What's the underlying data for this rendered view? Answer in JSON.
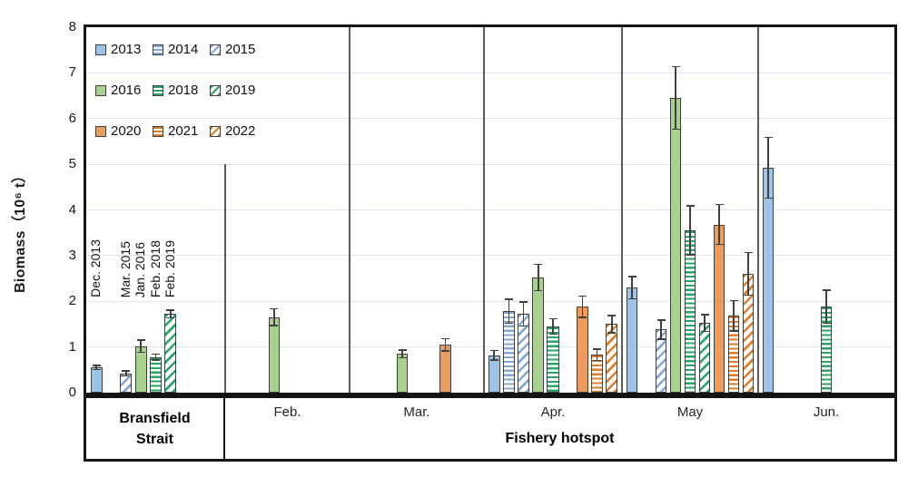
{
  "x_axis": {
    "left_label_line1": "Bransfield",
    "left_label_line2": "Strait",
    "bottom_label": "Fishery hotspot"
  },
  "chart_data": {
    "type": "bar",
    "title": "",
    "xlabel": "Fishery hotspot",
    "ylabel": "Biomass（10⁶ t）",
    "ylim": [
      0,
      8
    ],
    "y_ticks": [
      0,
      1,
      2,
      3,
      4,
      5,
      6,
      7,
      8
    ],
    "grid": "horizontal",
    "legend_position": "top-left-inside",
    "error_bars": true,
    "series_legend": [
      {
        "name": "2013",
        "palette": "blue",
        "fill": "solid"
      },
      {
        "name": "2014",
        "palette": "blue",
        "fill": "hstripe"
      },
      {
        "name": "2015",
        "palette": "blue",
        "fill": "dstripe"
      },
      {
        "name": "2016",
        "palette": "green",
        "fill": "solid"
      },
      {
        "name": "2018",
        "palette": "green",
        "fill": "hstripe"
      },
      {
        "name": "2019",
        "palette": "green",
        "fill": "dstripe"
      },
      {
        "name": "2020",
        "palette": "orange",
        "fill": "solid"
      },
      {
        "name": "2021",
        "palette": "orange",
        "fill": "hstripe"
      },
      {
        "name": "2022",
        "palette": "orange",
        "fill": "dstripe"
      }
    ],
    "sections": [
      {
        "label": "Bransfield Strait",
        "bars": [
          {
            "series": "2013",
            "value": 0.55,
            "error": 0.06,
            "annotation": "Dec. 2013"
          },
          {
            "series": "2015",
            "value": 0.42,
            "error": 0.07,
            "annotation": "Mar. 2015"
          },
          {
            "series": "2016",
            "value": 1.02,
            "error": 0.15,
            "annotation": "Jan. 2016"
          },
          {
            "series": "2018",
            "value": 0.78,
            "error": 0.08,
            "annotation": "Feb. 2018"
          },
          {
            "series": "2019",
            "value": 1.72,
            "error": 0.1,
            "annotation": "Feb. 2019"
          }
        ]
      },
      {
        "label": "Feb.",
        "bars": [
          {
            "series": "2016",
            "value": 1.65,
            "error": 0.2
          }
        ]
      },
      {
        "label": "Mar.",
        "bars": [
          {
            "series": "2016",
            "value": 0.85,
            "error": 0.1
          },
          {
            "series": "2020",
            "value": 1.05,
            "error": 0.15
          }
        ]
      },
      {
        "label": "Apr.",
        "bars": [
          {
            "series": "2013",
            "value": 0.82,
            "error": 0.12
          },
          {
            "series": "2014",
            "value": 1.78,
            "error": 0.28
          },
          {
            "series": "2015",
            "value": 1.72,
            "error": 0.28
          },
          {
            "series": "2016",
            "value": 2.52,
            "error": 0.3
          },
          {
            "series": "2018",
            "value": 1.45,
            "error": 0.18
          },
          {
            "series": "2020",
            "value": 1.88,
            "error": 0.25
          },
          {
            "series": "2021",
            "value": 0.83,
            "error": 0.14
          },
          {
            "series": "2022",
            "value": 1.5,
            "error": 0.2
          }
        ]
      },
      {
        "label": "May",
        "bars": [
          {
            "series": "2013",
            "value": 2.3,
            "error": 0.26
          },
          {
            "series": "2015",
            "value": 1.38,
            "error": 0.22
          },
          {
            "series": "2016",
            "value": 6.45,
            "error": 0.7
          },
          {
            "series": "2018",
            "value": 3.55,
            "error": 0.55
          },
          {
            "series": "2019",
            "value": 1.52,
            "error": 0.2
          },
          {
            "series": "2020",
            "value": 3.68,
            "error": 0.45
          },
          {
            "series": "2021",
            "value": 1.68,
            "error": 0.35
          },
          {
            "series": "2022",
            "value": 2.6,
            "error": 0.48
          }
        ]
      },
      {
        "label": "Jun.",
        "bars": [
          {
            "series": "2013",
            "value": 4.92,
            "error": 0.68
          },
          {
            "series": "2018",
            "value": 1.88,
            "error": 0.38
          }
        ]
      }
    ],
    "colors": {
      "blue": "#9DC3E6",
      "blue_stripe": "#7FA8D8",
      "green": "#A9D18E",
      "green_stripe": "#27A466",
      "orange": "#EB9C5E",
      "orange_stripe": "#E07C28",
      "bar_outline": "#3F3F3F",
      "error_bar": "#404040",
      "gridline": "#DBE5F1",
      "section_divider": "#5B5B5B",
      "axis_frame": "#141414"
    }
  }
}
